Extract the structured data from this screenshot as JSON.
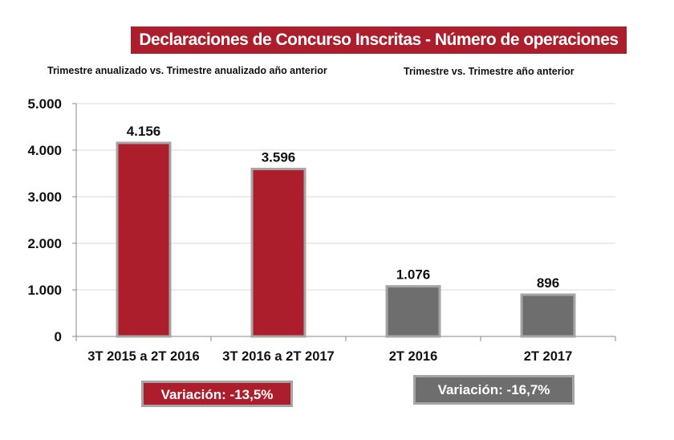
{
  "chart_data": {
    "type": "bar",
    "title": "Declaraciones de Concurso Inscritas - Número de operaciones",
    "subtitles": [
      "Trimestre anualizado vs. Trimestre anualizado año anterior",
      "Trimestre vs. Trimestre año anterior"
    ],
    "categories": [
      "3T 2015 a 2T 2016",
      "3T 2016 a 2T 2017",
      "2T 2016",
      "2T 2017"
    ],
    "values": [
      4156,
      3596,
      1076,
      896
    ],
    "data_labels": [
      "4.156",
      "3.596",
      "1.076",
      "896"
    ],
    "colors": [
      "#ad1e2c",
      "#ad1e2c",
      "#6d6e6d",
      "#6d6e6d"
    ],
    "ylim": [
      0,
      5000
    ],
    "yticks": [
      0,
      1000,
      2000,
      3000,
      4000,
      5000
    ],
    "ytick_labels": [
      "0",
      "1.000",
      "2.000",
      "3.000",
      "4.000",
      "5.000"
    ],
    "grid": true,
    "xlabel": "",
    "ylabel": ""
  },
  "variations": [
    {
      "label": "Variación: -13,5%",
      "color": "#ad1e2c"
    },
    {
      "label": "Variación: -16,7%",
      "color": "#6d6e6d"
    }
  ]
}
